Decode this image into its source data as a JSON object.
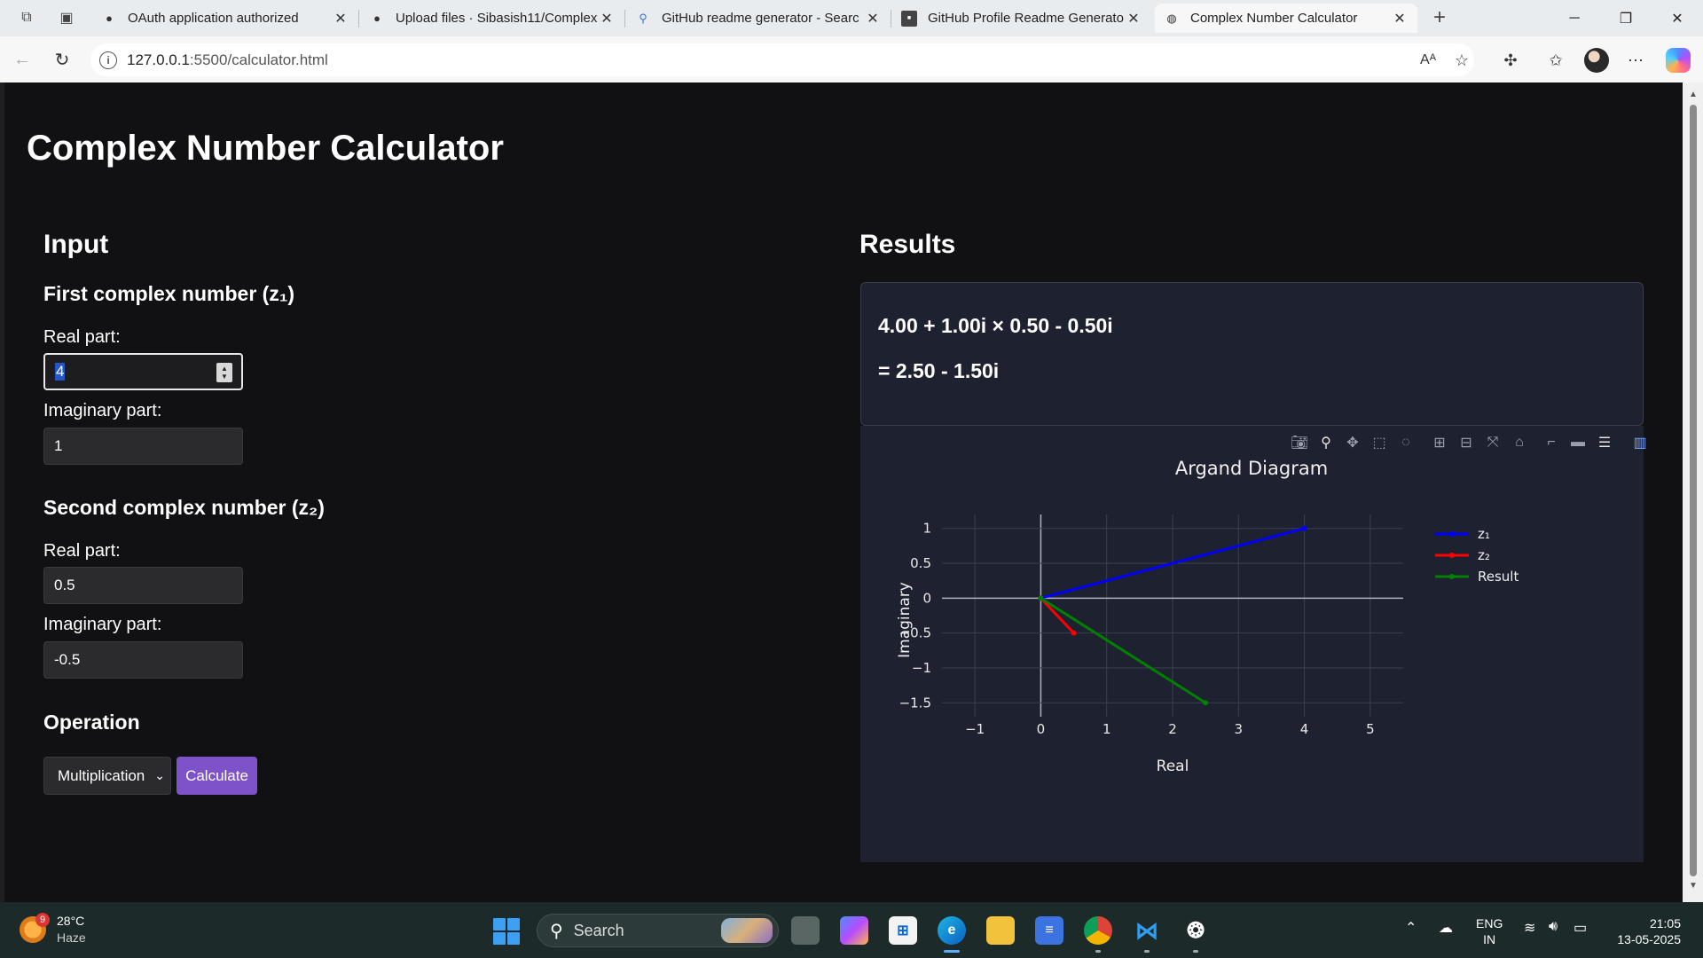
{
  "browser": {
    "tabs": [
      {
        "title": "OAuth application authorized",
        "icon": "github-icon"
      },
      {
        "title": "Upload files · Sibasish11/Complex",
        "icon": "github-icon"
      },
      {
        "title": "GitHub readme generator - Searc",
        "icon": "search-icon"
      },
      {
        "title": "GitHub Profile Readme Generator",
        "icon": "readme-generator-icon"
      },
      {
        "title": "Complex Number Calculator",
        "icon": "globe-icon"
      }
    ],
    "url": {
      "host": "127.0.0.1",
      "path": ":5500/calculator.html"
    }
  },
  "page": {
    "title": "Complex Number Calculator",
    "input": {
      "heading": "Input",
      "z1": {
        "heading": "First complex number (z₁)",
        "real_label": "Real part:",
        "real_value": "4",
        "imag_label": "Imaginary part:",
        "imag_value": "1"
      },
      "z2": {
        "heading": "Second complex number (z₂)",
        "real_label": "Real part:",
        "real_value": "0.5",
        "imag_label": "Imaginary part:",
        "imag_value": "-0.5"
      },
      "operation": {
        "heading": "Operation",
        "selected": "Multiplication",
        "button": "Calculate"
      }
    },
    "results": {
      "heading": "Results",
      "expression": "4.00 + 1.00i × 0.50 - 0.50i",
      "answer": "= 2.50 - 1.50i"
    }
  },
  "chart_data": {
    "type": "line",
    "title": "Argand Diagram",
    "xlabel": "Real",
    "ylabel": "Imaginary",
    "xlim": [
      -1.5,
      5.5
    ],
    "ylim": [
      -1.7,
      1.2
    ],
    "xticks": [
      -1,
      0,
      1,
      2,
      3,
      4,
      5
    ],
    "xtick_labels": [
      "−1",
      "0",
      "1",
      "2",
      "3",
      "4",
      "5"
    ],
    "yticks": [
      1,
      0.5,
      0,
      -0.5,
      -1,
      -1.5
    ],
    "ytick_labels": [
      "1",
      "0.5",
      "0",
      "−0.5",
      "−1",
      "−1.5"
    ],
    "grid": true,
    "legend": "top-right",
    "series": [
      {
        "name": "z₁",
        "color": "#0000ff",
        "x": [
          0,
          4
        ],
        "y": [
          0,
          1
        ]
      },
      {
        "name": "z₂",
        "color": "#ff0000",
        "x": [
          0,
          0.5
        ],
        "y": [
          0,
          -0.5
        ]
      },
      {
        "name": "Result",
        "color": "#008000",
        "x": [
          0,
          2.5
        ],
        "y": [
          0,
          -1.5
        ]
      }
    ]
  },
  "taskbar": {
    "weather": {
      "temp": "28°C",
      "cond": "Haze",
      "badge": "9"
    },
    "search_placeholder": "Search",
    "lang": {
      "line1": "ENG",
      "line2": "IN"
    },
    "clock": {
      "time": "21:05",
      "date": "13-05-2025"
    }
  }
}
